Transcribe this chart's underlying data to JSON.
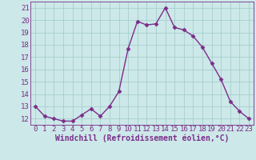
{
  "x": [
    0,
    1,
    2,
    3,
    4,
    5,
    6,
    7,
    8,
    9,
    10,
    11,
    12,
    13,
    14,
    15,
    16,
    17,
    18,
    19,
    20,
    21,
    22,
    23
  ],
  "y": [
    13,
    12.2,
    12,
    11.8,
    11.8,
    12.3,
    12.8,
    12.2,
    13,
    14.2,
    17.7,
    19.9,
    19.6,
    19.7,
    21.0,
    19.4,
    19.2,
    18.7,
    17.8,
    16.5,
    15.2,
    13.4,
    12.6,
    12.0
  ],
  "line_color": "#7B2D8B",
  "marker": "D",
  "marker_size": 2.5,
  "bg_color": "#cce8e8",
  "grid_color": "#a8cece",
  "xlabel": "Windchill (Refroidissement éolien,°C)",
  "xlabel_color": "#7B2D8B",
  "ylim": [
    11.5,
    21.5
  ],
  "xlim": [
    -0.5,
    23.5
  ],
  "yticks": [
    12,
    13,
    14,
    15,
    16,
    17,
    18,
    19,
    20,
    21
  ],
  "xticks": [
    0,
    1,
    2,
    3,
    4,
    5,
    6,
    7,
    8,
    9,
    10,
    11,
    12,
    13,
    14,
    15,
    16,
    17,
    18,
    19,
    20,
    21,
    22,
    23
  ],
  "tick_color": "#7B2D8B",
  "tick_fontsize": 6.5,
  "xlabel_fontsize": 7,
  "linewidth": 1.0
}
